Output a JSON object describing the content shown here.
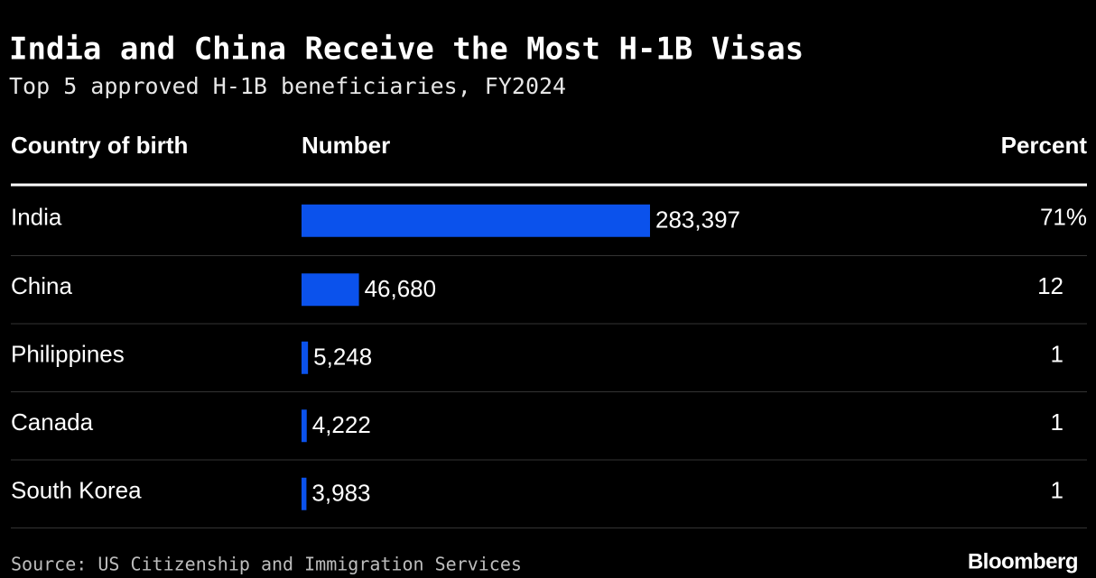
{
  "chart_data": {
    "type": "bar",
    "title": "India and China Receive the Most H-1B Visas",
    "subtitle": "Top 5 approved H-1B beneficiaries, FY2024",
    "column_headers": [
      "Country of birth",
      "Number",
      "Percent"
    ],
    "categories": [
      "India",
      "China",
      "Philippines",
      "Canada",
      "South Korea"
    ],
    "values": [
      283397,
      46680,
      5248,
      4222,
      3983
    ],
    "value_labels": [
      "283,397",
      "46,680",
      "5,248",
      "4,222",
      "3,983"
    ],
    "percent_values": [
      71,
      12,
      1,
      1,
      1
    ],
    "percent_labels": [
      "71%",
      "12",
      "1",
      "1",
      "1"
    ],
    "color": "#0b52ec",
    "source": "Source: US Citizenship and Immigration Services",
    "credit": "Bloomberg"
  }
}
